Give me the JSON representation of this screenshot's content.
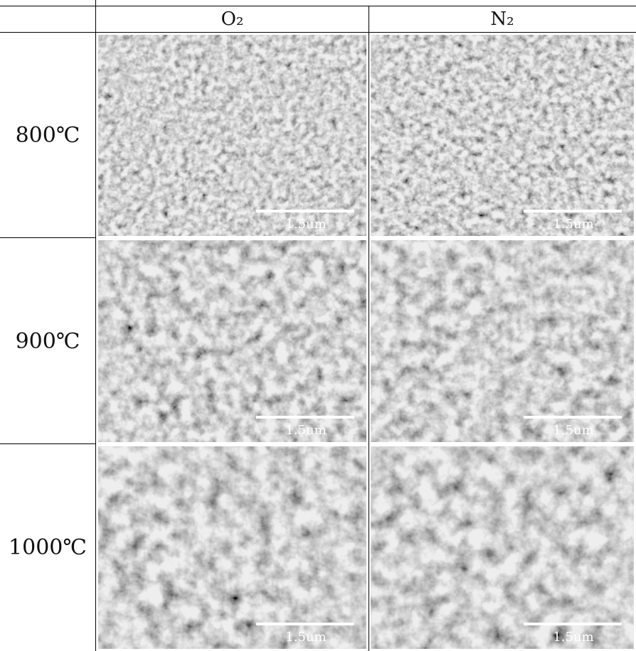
{
  "table": {
    "columns": [
      "O₂",
      "N₂"
    ],
    "rows": [
      {
        "label": "800℃",
        "cells": [
          {
            "scale_label": "1.5um"
          },
          {
            "scale_label": "1.5um"
          }
        ]
      },
      {
        "label": "900℃",
        "cells": [
          {
            "scale_label": "1.5um"
          },
          {
            "scale_label": "1.5um"
          }
        ]
      },
      {
        "label": "1000℃",
        "cells": [
          {
            "scale_label": "1.5um"
          },
          {
            "scale_label": "1.5um"
          }
        ]
      }
    ]
  }
}
